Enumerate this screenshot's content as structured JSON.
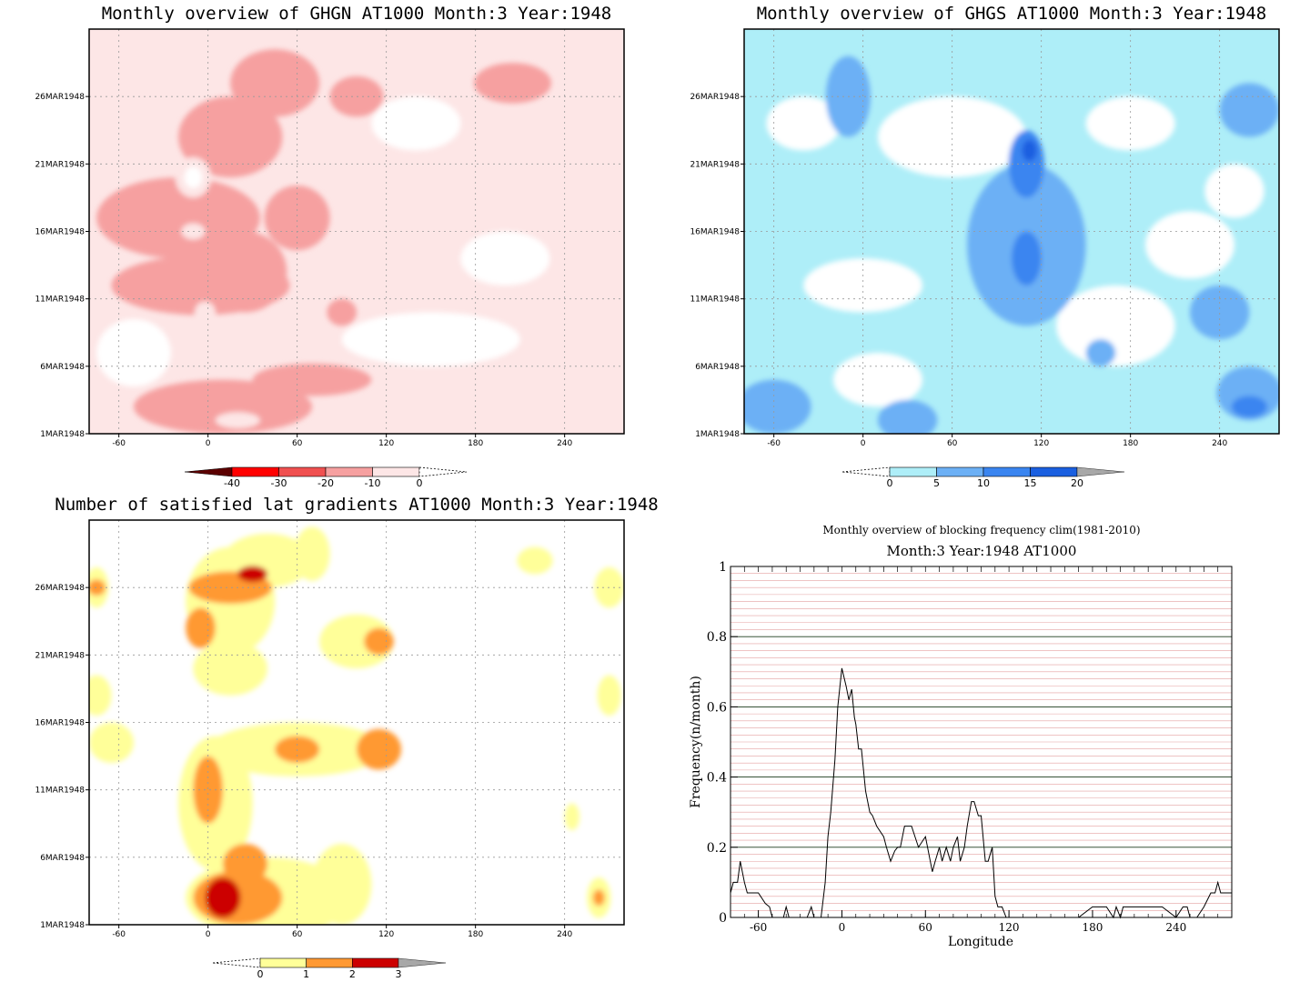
{
  "chart_data": [
    {
      "type": "heatmap",
      "title": "Monthly overview of GHGN AT1000 Month:3 Year:1948",
      "xlabel": "",
      "ylabel": "",
      "x_ticks": [
        "-60",
        "0",
        "60",
        "120",
        "180",
        "240"
      ],
      "y_ticks": [
        "1MAR1948",
        "6MAR1948",
        "11MAR1948",
        "16MAR1948",
        "21MAR1948",
        "26MAR1948"
      ],
      "xlim": [
        -80,
        280
      ],
      "ylim": [
        1,
        31
      ],
      "colorbar": {
        "ticks": [
          "-40",
          "-30",
          "-20",
          "-10",
          "0"
        ],
        "colors": [
          "#5c0000",
          "#ff0000",
          "#f05050",
          "#f6a0a0",
          "#fde6e6",
          "#ffffff"
        ]
      },
      "background_level": "#fde6e6",
      "regions": [
        {
          "level": 3,
          "lon": -5,
          "day": 12,
          "rx": 60,
          "ry": 2.2
        },
        {
          "level": 3,
          "lon": -20,
          "day": 17,
          "rx": 55,
          "ry": 3
        },
        {
          "level": 3,
          "lon": 60,
          "day": 17,
          "rx": 22,
          "ry": 2.4
        },
        {
          "level": 3,
          "lon": 25,
          "day": 13,
          "rx": 28,
          "ry": 3
        },
        {
          "level": 3,
          "lon": 10,
          "day": 3,
          "rx": 60,
          "ry": 2
        },
        {
          "level": 3,
          "lon": 70,
          "day": 5,
          "rx": 40,
          "ry": 1.2
        },
        {
          "level": 3,
          "lon": 15,
          "day": 23,
          "rx": 35,
          "ry": 3
        },
        {
          "level": 3,
          "lon": 45,
          "day": 27,
          "rx": 30,
          "ry": 2.5
        },
        {
          "level": 3,
          "lon": 100,
          "day": 26,
          "rx": 18,
          "ry": 1.5
        },
        {
          "level": 3,
          "lon": 205,
          "day": 27,
          "rx": 26,
          "ry": 1.5
        },
        {
          "level": 3,
          "lon": 90,
          "day": 10,
          "rx": 10,
          "ry": 1
        },
        {
          "level": 4,
          "lon": -10,
          "day": 20,
          "rx": 12,
          "ry": 1.5
        },
        {
          "level": 4,
          "lon": -10,
          "day": 16,
          "rx": 8,
          "ry": 0.6
        },
        {
          "level": 4,
          "lon": 20,
          "day": 2,
          "rx": 15,
          "ry": 0.6
        },
        {
          "level": 4,
          "lon": -2,
          "day": 10,
          "rx": 7,
          "ry": 0.8
        },
        {
          "level": 5,
          "lon": -10,
          "day": 20,
          "rx": 6,
          "ry": 0.8
        },
        {
          "level": 6,
          "lon": 200,
          "day": 14,
          "rx": 30,
          "ry": 2
        },
        {
          "level": 6,
          "lon": 150,
          "day": 8,
          "rx": 60,
          "ry": 2
        },
        {
          "level": 6,
          "lon": -50,
          "day": 7,
          "rx": 25,
          "ry": 2.5
        },
        {
          "level": 6,
          "lon": 140,
          "day": 24,
          "rx": 30,
          "ry": 2
        }
      ]
    },
    {
      "type": "heatmap",
      "title": "Monthly overview of GHGS AT1000 Month:3 Year:1948",
      "xlabel": "",
      "ylabel": "",
      "x_ticks": [
        "-60",
        "0",
        "60",
        "120",
        "180",
        "240"
      ],
      "y_ticks": [
        "1MAR1948",
        "6MAR1948",
        "11MAR1948",
        "16MAR1948",
        "21MAR1948",
        "26MAR1948"
      ],
      "xlim": [
        -80,
        280
      ],
      "ylim": [
        1,
        31
      ],
      "colorbar": {
        "ticks": [
          "0",
          "5",
          "10",
          "15",
          "20"
        ],
        "colors": [
          "#ffffff",
          "#aeeef8",
          "#6cb0f5",
          "#3a85f0",
          "#1a5fe0",
          "#a8a8a8"
        ]
      },
      "background_level": "#aeeef8",
      "regions": [
        {
          "level": 0,
          "lon": 60,
          "day": 23,
          "rx": 50,
          "ry": 3
        },
        {
          "level": 0,
          "lon": 0,
          "day": 12,
          "rx": 40,
          "ry": 2
        },
        {
          "level": 0,
          "lon": 170,
          "day": 9,
          "rx": 40,
          "ry": 3
        },
        {
          "level": 0,
          "lon": 220,
          "day": 15,
          "rx": 30,
          "ry": 2.5
        },
        {
          "level": 0,
          "lon": 180,
          "day": 24,
          "rx": 30,
          "ry": 2
        },
        {
          "level": 0,
          "lon": -40,
          "day": 24,
          "rx": 25,
          "ry": 2
        },
        {
          "level": 0,
          "lon": 10,
          "day": 5,
          "rx": 30,
          "ry": 2
        },
        {
          "level": 0,
          "lon": 250,
          "day": 19,
          "rx": 20,
          "ry": 2
        },
        {
          "level": 2,
          "lon": 110,
          "day": 15,
          "rx": 40,
          "ry": 6
        },
        {
          "level": 2,
          "lon": 240,
          "day": 10,
          "rx": 20,
          "ry": 2
        },
        {
          "level": 2,
          "lon": -60,
          "day": 3,
          "rx": 25,
          "ry": 2
        },
        {
          "level": 2,
          "lon": -10,
          "day": 26,
          "rx": 15,
          "ry": 3
        },
        {
          "level": 2,
          "lon": 260,
          "day": 25,
          "rx": 20,
          "ry": 2
        },
        {
          "level": 2,
          "lon": 260,
          "day": 4,
          "rx": 22,
          "ry": 2
        },
        {
          "level": 2,
          "lon": 160,
          "day": 7,
          "rx": 10,
          "ry": 1
        },
        {
          "level": 2,
          "lon": 30,
          "day": 2,
          "rx": 20,
          "ry": 1.5
        },
        {
          "level": 3,
          "lon": 110,
          "day": 21,
          "rx": 12,
          "ry": 2.5
        },
        {
          "level": 3,
          "lon": 110,
          "day": 14,
          "rx": 10,
          "ry": 2
        },
        {
          "level": 3,
          "lon": 260,
          "day": 3,
          "rx": 12,
          "ry": 0.8
        },
        {
          "level": 4,
          "lon": 112,
          "day": 22,
          "rx": 5,
          "ry": 0.8
        }
      ]
    },
    {
      "type": "heatmap",
      "title": "Number of satisfied lat gradients AT1000 Month:3 Year:1948",
      "xlabel": "",
      "ylabel": "",
      "x_ticks": [
        "-60",
        "0",
        "60",
        "120",
        "180",
        "240"
      ],
      "y_ticks": [
        "1MAR1948",
        "6MAR1948",
        "11MAR1948",
        "16MAR1948",
        "21MAR1948",
        "26MAR1948"
      ],
      "xlim": [
        -80,
        280
      ],
      "ylim": [
        1,
        31
      ],
      "colorbar": {
        "ticks": [
          "0",
          "1",
          "2",
          "3"
        ],
        "colors": [
          "#ffffff",
          "#ffff99",
          "#ff9933",
          "#cc0000",
          "#a8a8a8"
        ]
      },
      "background_level": "#ffffff",
      "regions": [
        {
          "level": 1,
          "lon": 15,
          "day": 25,
          "rx": 30,
          "ry": 4
        },
        {
          "level": 1,
          "lon": 40,
          "day": 28,
          "rx": 30,
          "ry": 2
        },
        {
          "level": 1,
          "lon": 70,
          "day": 28.5,
          "rx": 12,
          "ry": 2
        },
        {
          "level": 1,
          "lon": 100,
          "day": 22,
          "rx": 25,
          "ry": 2
        },
        {
          "level": 1,
          "lon": 15,
          "day": 20,
          "rx": 25,
          "ry": 2
        },
        {
          "level": 1,
          "lon": 60,
          "day": 14,
          "rx": 60,
          "ry": 2
        },
        {
          "level": 1,
          "lon": 5,
          "day": 10,
          "rx": 25,
          "ry": 5
        },
        {
          "level": 1,
          "lon": 40,
          "day": 3,
          "rx": 55,
          "ry": 3
        },
        {
          "level": 1,
          "lon": 90,
          "day": 4,
          "rx": 20,
          "ry": 3
        },
        {
          "level": 1,
          "lon": -65,
          "day": 14.5,
          "rx": 15,
          "ry": 1.5
        },
        {
          "level": 1,
          "lon": -75,
          "day": 18,
          "rx": 10,
          "ry": 1.5
        },
        {
          "level": 1,
          "lon": -75,
          "day": 26,
          "rx": 8,
          "ry": 1.5
        },
        {
          "level": 1,
          "lon": 220,
          "day": 28,
          "rx": 12,
          "ry": 1
        },
        {
          "level": 1,
          "lon": 270,
          "day": 26,
          "rx": 10,
          "ry": 1.5
        },
        {
          "level": 1,
          "lon": 270,
          "day": 18,
          "rx": 8,
          "ry": 1.5
        },
        {
          "level": 1,
          "lon": 245,
          "day": 9,
          "rx": 5,
          "ry": 1
        },
        {
          "level": 1,
          "lon": 263,
          "day": 3,
          "rx": 8,
          "ry": 1.5
        },
        {
          "level": 2,
          "lon": 15,
          "day": 26,
          "rx": 28,
          "ry": 1.2
        },
        {
          "level": 2,
          "lon": -5,
          "day": 23,
          "rx": 10,
          "ry": 1.5
        },
        {
          "level": 2,
          "lon": 115,
          "day": 22,
          "rx": 10,
          "ry": 1
        },
        {
          "level": 2,
          "lon": 60,
          "day": 14,
          "rx": 15,
          "ry": 1
        },
        {
          "level": 2,
          "lon": 115,
          "day": 14,
          "rx": 15,
          "ry": 1.5
        },
        {
          "level": 2,
          "lon": 0,
          "day": 11,
          "rx": 10,
          "ry": 2.5
        },
        {
          "level": 2,
          "lon": 20,
          "day": 3,
          "rx": 30,
          "ry": 2
        },
        {
          "level": 2,
          "lon": 25,
          "day": 5.5,
          "rx": 15,
          "ry": 1.5
        },
        {
          "level": 2,
          "lon": 263,
          "day": 3,
          "rx": 4,
          "ry": 0.6
        },
        {
          "level": 2,
          "lon": -75,
          "day": 26,
          "rx": 6,
          "ry": 0.6
        },
        {
          "level": 3,
          "lon": 30,
          "day": 27,
          "rx": 10,
          "ry": 0.6
        },
        {
          "level": 3,
          "lon": 10,
          "day": 3,
          "rx": 12,
          "ry": 1.5
        }
      ]
    },
    {
      "type": "line",
      "title": "Monthly overview of blocking frequency clim(1981-2010)",
      "subtitle": "Month:3 Year:1948  AT1000",
      "xlabel": "Longitude",
      "ylabel": "Frequency(n/month)",
      "xlim": [
        -80,
        280
      ],
      "ylim": [
        0,
        1
      ],
      "x_ticks": [
        "-60",
        "0",
        "60",
        "120",
        "180",
        "240"
      ],
      "y_ticks": [
        "0",
        "0.2",
        "0.4",
        "0.6",
        "0.8",
        "1"
      ],
      "grid": true,
      "series": [
        {
          "x": [
            -80,
            -78,
            -75,
            -73,
            -70,
            -68,
            -65,
            -60,
            -55,
            -52,
            -50,
            -45,
            -42,
            -40,
            -38,
            -35,
            -30,
            -25,
            -22,
            -20,
            -15,
            -12,
            -10,
            -8,
            -5,
            -3,
            0,
            3,
            5,
            7,
            9,
            10,
            12,
            14,
            17,
            20,
            22,
            25,
            30,
            32,
            35,
            38,
            40,
            42,
            45,
            48,
            50,
            55,
            60,
            65,
            67,
            70,
            72,
            75,
            78,
            80,
            83,
            85,
            88,
            90,
            93,
            95,
            98,
            100,
            103,
            105,
            108,
            110,
            112,
            115,
            118,
            120,
            122,
            125,
            130,
            132,
            135,
            140,
            150,
            160,
            170,
            180,
            185,
            190,
            195,
            197,
            200,
            202,
            205,
            210,
            220,
            230,
            240,
            245,
            248,
            250,
            255,
            260,
            265,
            268,
            270,
            272,
            275,
            280
          ],
          "y": [
            0.07,
            0.1,
            0.1,
            0.16,
            0.1,
            0.07,
            0.07,
            0.07,
            0.04,
            0.03,
            0.0,
            0.0,
            0.0,
            0.03,
            0.0,
            0.0,
            0.0,
            0.0,
            0.03,
            0.0,
            0.0,
            0.1,
            0.23,
            0.3,
            0.45,
            0.6,
            0.71,
            0.66,
            0.62,
            0.65,
            0.57,
            0.55,
            0.48,
            0.48,
            0.36,
            0.3,
            0.29,
            0.26,
            0.23,
            0.2,
            0.16,
            0.19,
            0.2,
            0.2,
            0.26,
            0.26,
            0.26,
            0.2,
            0.23,
            0.13,
            0.16,
            0.2,
            0.16,
            0.2,
            0.16,
            0.2,
            0.23,
            0.16,
            0.2,
            0.26,
            0.33,
            0.33,
            0.29,
            0.29,
            0.16,
            0.16,
            0.2,
            0.06,
            0.03,
            0.03,
            0.0,
            0.0,
            0.0,
            0.0,
            0.0,
            0.0,
            0.0,
            0.0,
            0.0,
            0.0,
            0.0,
            0.03,
            0.03,
            0.03,
            0.0,
            0.03,
            0.0,
            0.03,
            0.03,
            0.03,
            0.03,
            0.03,
            0.0,
            0.03,
            0.03,
            0.0,
            0.0,
            0.03,
            0.07,
            0.07,
            0.1,
            0.07,
            0.07,
            0.07
          ]
        }
      ]
    }
  ]
}
